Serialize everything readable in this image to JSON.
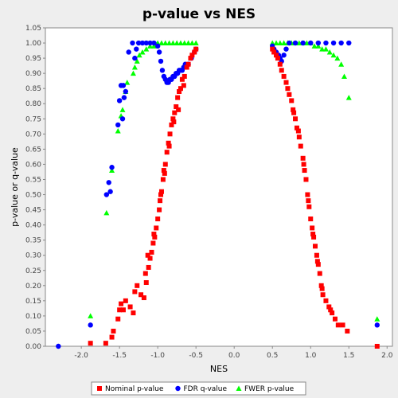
{
  "chart_data": {
    "type": "scatter",
    "title": "p-value vs NES",
    "xlabel": "NES",
    "ylabel": "p-value or q-value",
    "xlim": [
      -2.47,
      2.07
    ],
    "ylim": [
      0.0,
      1.05
    ],
    "x_ticks": [
      -2.0,
      -1.5,
      -1.0,
      -0.5,
      0.0,
      0.5,
      1.0,
      1.5,
      2.0
    ],
    "x_tick_labels": [
      "-2.0",
      "-1.5",
      "-1.0",
      "-0.5",
      "0.0",
      "0.5",
      "1.0",
      "1.5",
      "2.0"
    ],
    "y_ticks": [
      0.0,
      0.05,
      0.1,
      0.15,
      0.2,
      0.25,
      0.3,
      0.35,
      0.4,
      0.45,
      0.5,
      0.55,
      0.6,
      0.65,
      0.7,
      0.75,
      0.8,
      0.85,
      0.9,
      0.95,
      1.0,
      1.05
    ],
    "y_tick_labels": [
      "0.00",
      "0.05",
      "0.10",
      "0.15",
      "0.20",
      "0.25",
      "0.30",
      "0.35",
      "0.40",
      "0.45",
      "0.50",
      "0.55",
      "0.60",
      "0.65",
      "0.70",
      "0.75",
      "0.80",
      "0.85",
      "0.90",
      "0.95",
      "1.00",
      "1.05"
    ],
    "grid": false,
    "legend_position": "bottom",
    "series": [
      {
        "name": "Nominal p-value",
        "color": "#ff0000",
        "marker": "square",
        "points": [
          [
            -1.88,
            0.01
          ],
          [
            -1.68,
            0.01
          ],
          [
            -1.6,
            0.03
          ],
          [
            -1.58,
            0.05
          ],
          [
            -1.52,
            0.09
          ],
          [
            -1.5,
            0.12
          ],
          [
            -1.48,
            0.14
          ],
          [
            -1.45,
            0.12
          ],
          [
            -1.42,
            0.15
          ],
          [
            -1.36,
            0.13
          ],
          [
            -1.32,
            0.11
          ],
          [
            -1.3,
            0.18
          ],
          [
            -1.27,
            0.2
          ],
          [
            -1.22,
            0.17
          ],
          [
            -1.18,
            0.16
          ],
          [
            -1.15,
            0.21
          ],
          [
            -1.12,
            0.26
          ],
          [
            -1.1,
            0.29
          ],
          [
            -1.08,
            0.31
          ],
          [
            -1.06,
            0.34
          ],
          [
            -1.04,
            0.36
          ],
          [
            -1.02,
            0.39
          ],
          [
            -1.0,
            0.42
          ],
          [
            -0.98,
            0.45
          ],
          [
            -0.97,
            0.48
          ],
          [
            -0.95,
            0.51
          ],
          [
            -0.93,
            0.55
          ],
          [
            -0.92,
            0.58
          ],
          [
            -0.9,
            0.6
          ],
          [
            -0.88,
            0.64
          ],
          [
            -0.86,
            0.67
          ],
          [
            -0.84,
            0.7
          ],
          [
            -0.82,
            0.73
          ],
          [
            -0.8,
            0.75
          ],
          [
            -0.78,
            0.77
          ],
          [
            -0.76,
            0.79
          ],
          [
            -0.74,
            0.82
          ],
          [
            -0.72,
            0.84
          ],
          [
            -0.7,
            0.85
          ],
          [
            -0.68,
            0.88
          ],
          [
            -0.65,
            0.89
          ],
          [
            -0.62,
            0.92
          ],
          [
            -0.6,
            0.93
          ],
          [
            -0.57,
            0.95
          ],
          [
            -0.55,
            0.96
          ],
          [
            -0.52,
            0.97
          ],
          [
            -0.5,
            0.98
          ],
          [
            -1.16,
            0.24
          ],
          [
            -1.13,
            0.3
          ],
          [
            -1.05,
            0.37
          ],
          [
            -0.96,
            0.5
          ],
          [
            -0.91,
            0.57
          ],
          [
            -0.85,
            0.66
          ],
          [
            -0.79,
            0.74
          ],
          [
            -0.73,
            0.78
          ],
          [
            -0.66,
            0.86
          ],
          [
            0.5,
            0.98
          ],
          [
            0.52,
            0.97
          ],
          [
            0.55,
            0.96
          ],
          [
            0.57,
            0.95
          ],
          [
            0.6,
            0.93
          ],
          [
            0.62,
            0.91
          ],
          [
            0.65,
            0.89
          ],
          [
            0.68,
            0.87
          ],
          [
            0.7,
            0.85
          ],
          [
            0.72,
            0.83
          ],
          [
            0.75,
            0.81
          ],
          [
            0.77,
            0.78
          ],
          [
            0.8,
            0.75
          ],
          [
            0.82,
            0.72
          ],
          [
            0.85,
            0.69
          ],
          [
            0.87,
            0.66
          ],
          [
            0.9,
            0.62
          ],
          [
            0.92,
            0.58
          ],
          [
            0.94,
            0.55
          ],
          [
            0.96,
            0.5
          ],
          [
            0.98,
            0.46
          ],
          [
            1.0,
            0.42
          ],
          [
            1.02,
            0.39
          ],
          [
            1.04,
            0.36
          ],
          [
            1.06,
            0.33
          ],
          [
            1.08,
            0.3
          ],
          [
            1.1,
            0.27
          ],
          [
            1.12,
            0.24
          ],
          [
            1.14,
            0.2
          ],
          [
            1.16,
            0.17
          ],
          [
            1.2,
            0.15
          ],
          [
            1.24,
            0.13
          ],
          [
            1.28,
            0.11
          ],
          [
            1.32,
            0.09
          ],
          [
            1.36,
            0.07
          ],
          [
            1.42,
            0.07
          ],
          [
            1.48,
            0.05
          ],
          [
            1.87,
            0.0
          ],
          [
            0.78,
            0.77
          ],
          [
            0.84,
            0.71
          ],
          [
            0.91,
            0.6
          ],
          [
            0.97,
            0.48
          ],
          [
            1.03,
            0.37
          ],
          [
            1.09,
            0.28
          ],
          [
            1.15,
            0.19
          ],
          [
            1.26,
            0.12
          ]
        ]
      },
      {
        "name": "FDR q-value",
        "color": "#0000ff",
        "marker": "circle",
        "points": [
          [
            -2.3,
            0.0
          ],
          [
            -1.88,
            0.07
          ],
          [
            -1.67,
            0.5
          ],
          [
            -1.62,
            0.51
          ],
          [
            -1.6,
            0.59
          ],
          [
            -1.64,
            0.54
          ],
          [
            -1.52,
            0.73
          ],
          [
            -1.5,
            0.81
          ],
          [
            -1.48,
            0.86
          ],
          [
            -1.46,
            0.75
          ],
          [
            -1.44,
            0.82
          ],
          [
            -1.42,
            0.84
          ],
          [
            -1.45,
            0.86
          ],
          [
            -1.38,
            0.97
          ],
          [
            -1.33,
            1.0
          ],
          [
            -1.3,
            0.95
          ],
          [
            -1.28,
            0.98
          ],
          [
            -1.25,
            1.0
          ],
          [
            -1.2,
            1.0
          ],
          [
            -1.15,
            1.0
          ],
          [
            -1.1,
            1.0
          ],
          [
            -1.05,
            1.0
          ],
          [
            -1.0,
            0.99
          ],
          [
            -0.98,
            0.97
          ],
          [
            -0.96,
            0.94
          ],
          [
            -0.94,
            0.91
          ],
          [
            -0.92,
            0.89
          ],
          [
            -0.9,
            0.88
          ],
          [
            -0.88,
            0.87
          ],
          [
            -0.86,
            0.87
          ],
          [
            -0.84,
            0.88
          ],
          [
            -0.82,
            0.88
          ],
          [
            -0.8,
            0.89
          ],
          [
            -0.78,
            0.89
          ],
          [
            -0.76,
            0.9
          ],
          [
            -0.74,
            0.9
          ],
          [
            -0.72,
            0.91
          ],
          [
            -0.7,
            0.91
          ],
          [
            -0.68,
            0.91
          ],
          [
            -0.66,
            0.92
          ],
          [
            -0.64,
            0.93
          ],
          [
            -0.6,
            0.93
          ],
          [
            -0.56,
            0.95
          ],
          [
            -0.52,
            0.97
          ],
          [
            -0.5,
            0.98
          ],
          [
            0.5,
            0.99
          ],
          [
            0.52,
            0.98
          ],
          [
            0.55,
            0.97
          ],
          [
            0.58,
            0.96
          ],
          [
            0.6,
            0.95
          ],
          [
            0.62,
            0.94
          ],
          [
            0.65,
            0.96
          ],
          [
            0.68,
            0.98
          ],
          [
            0.72,
            1.0
          ],
          [
            0.8,
            1.0
          ],
          [
            0.9,
            1.0
          ],
          [
            1.0,
            1.0
          ],
          [
            1.1,
            1.0
          ],
          [
            1.2,
            1.0
          ],
          [
            1.3,
            1.0
          ],
          [
            1.4,
            1.0
          ],
          [
            1.5,
            1.0
          ],
          [
            1.87,
            0.07
          ]
        ]
      },
      {
        "name": "FWER p-value",
        "color": "#00ff00",
        "marker": "triangle",
        "points": [
          [
            -1.88,
            0.1
          ],
          [
            -1.67,
            0.44
          ],
          [
            -1.6,
            0.58
          ],
          [
            -1.52,
            0.71
          ],
          [
            -1.48,
            0.76
          ],
          [
            -1.46,
            0.78
          ],
          [
            -1.42,
            0.84
          ],
          [
            -1.4,
            0.87
          ],
          [
            -1.32,
            0.9
          ],
          [
            -1.3,
            0.92
          ],
          [
            -1.27,
            0.94
          ],
          [
            -1.24,
            0.96
          ],
          [
            -1.2,
            0.97
          ],
          [
            -1.15,
            0.98
          ],
          [
            -1.1,
            0.99
          ],
          [
            -1.05,
            0.99
          ],
          [
            -1.0,
            1.0
          ],
          [
            -0.95,
            1.0
          ],
          [
            -0.9,
            1.0
          ],
          [
            -0.85,
            1.0
          ],
          [
            -0.8,
            1.0
          ],
          [
            -0.75,
            1.0
          ],
          [
            -0.7,
            1.0
          ],
          [
            -0.65,
            1.0
          ],
          [
            -0.6,
            1.0
          ],
          [
            -0.55,
            1.0
          ],
          [
            -0.5,
            1.0
          ],
          [
            0.5,
            1.0
          ],
          [
            0.55,
            1.0
          ],
          [
            0.6,
            1.0
          ],
          [
            0.65,
            1.0
          ],
          [
            0.7,
            1.0
          ],
          [
            0.75,
            1.0
          ],
          [
            0.8,
            1.0
          ],
          [
            0.85,
            1.0
          ],
          [
            0.9,
            1.0
          ],
          [
            0.95,
            1.0
          ],
          [
            1.0,
            1.0
          ],
          [
            1.05,
            0.99
          ],
          [
            1.1,
            0.99
          ],
          [
            1.15,
            0.98
          ],
          [
            1.2,
            0.98
          ],
          [
            1.25,
            0.97
          ],
          [
            1.3,
            0.96
          ],
          [
            1.35,
            0.95
          ],
          [
            1.4,
            0.93
          ],
          [
            1.44,
            0.89
          ],
          [
            1.5,
            0.82
          ],
          [
            1.87,
            0.09
          ]
        ]
      }
    ]
  }
}
